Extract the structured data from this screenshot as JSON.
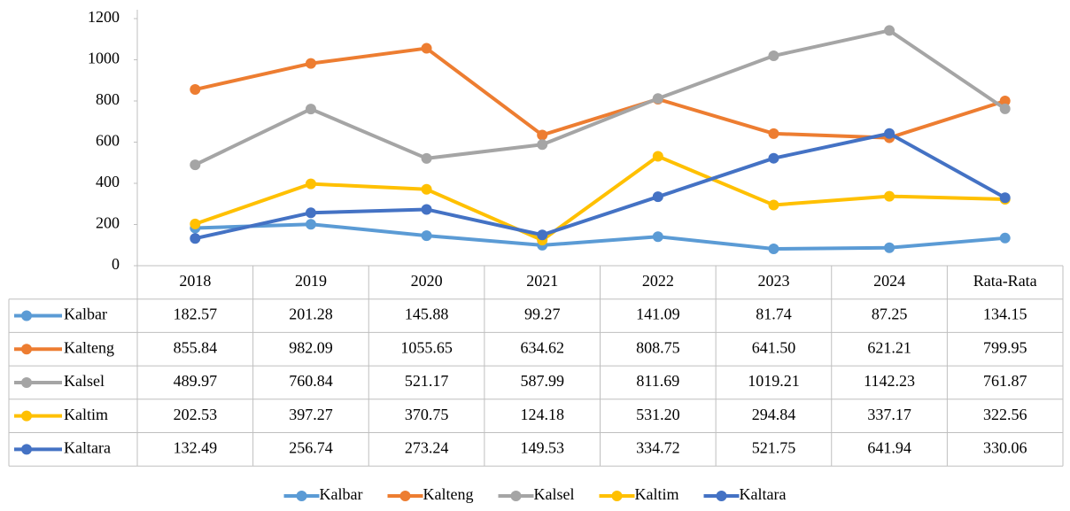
{
  "chart_data": {
    "type": "line",
    "categories": [
      "2018",
      "2019",
      "2020",
      "2021",
      "2022",
      "2023",
      "2024",
      "Rata-Rata"
    ],
    "series": [
      {
        "name": "Kalbar",
        "color": "#5b9bd5",
        "values": [
          182.57,
          201.28,
          145.88,
          99.27,
          141.09,
          81.74,
          87.25,
          134.15
        ],
        "value_labels": [
          "182.57",
          "201.28",
          "145.88",
          "99.27",
          "141.09",
          "81.74",
          "87.25",
          "134.15"
        ]
      },
      {
        "name": "Kalteng",
        "color": "#ed7d31",
        "values": [
          855.84,
          982.09,
          1055.65,
          634.62,
          808.75,
          641.5,
          621.21,
          799.95
        ],
        "value_labels": [
          "855.84",
          "982.09",
          "1055.65",
          "634.62",
          "808.75",
          "641.50",
          "621.21",
          "799.95"
        ]
      },
      {
        "name": "Kalsel",
        "color": "#a5a5a5",
        "values": [
          489.97,
          760.84,
          521.17,
          587.99,
          811.69,
          1019.21,
          1142.23,
          761.87
        ],
        "value_labels": [
          "489.97",
          "760.84",
          "521.17",
          "587.99",
          "811.69",
          "1019.21",
          "1142.23",
          "761.87"
        ]
      },
      {
        "name": "Kaltim",
        "color": "#ffc000",
        "values": [
          202.53,
          397.27,
          370.75,
          124.18,
          531.2,
          294.84,
          337.17,
          322.56
        ],
        "value_labels": [
          "202.53",
          "397.27",
          "370.75",
          "124.18",
          "531.20",
          "294.84",
          "337.17",
          "322.56"
        ]
      },
      {
        "name": "Kaltara",
        "color": "#4472c4",
        "values": [
          132.49,
          256.74,
          273.24,
          149.53,
          334.72,
          521.75,
          641.94,
          330.06
        ],
        "value_labels": [
          "132.49",
          "256.74",
          "273.24",
          "149.53",
          "334.72",
          "521.75",
          "641.94",
          "330.06"
        ]
      }
    ],
    "ylim": [
      0,
      1200
    ],
    "yticks": [
      0,
      200,
      400,
      600,
      800,
      1000,
      1200
    ],
    "legend": "bottom"
  }
}
